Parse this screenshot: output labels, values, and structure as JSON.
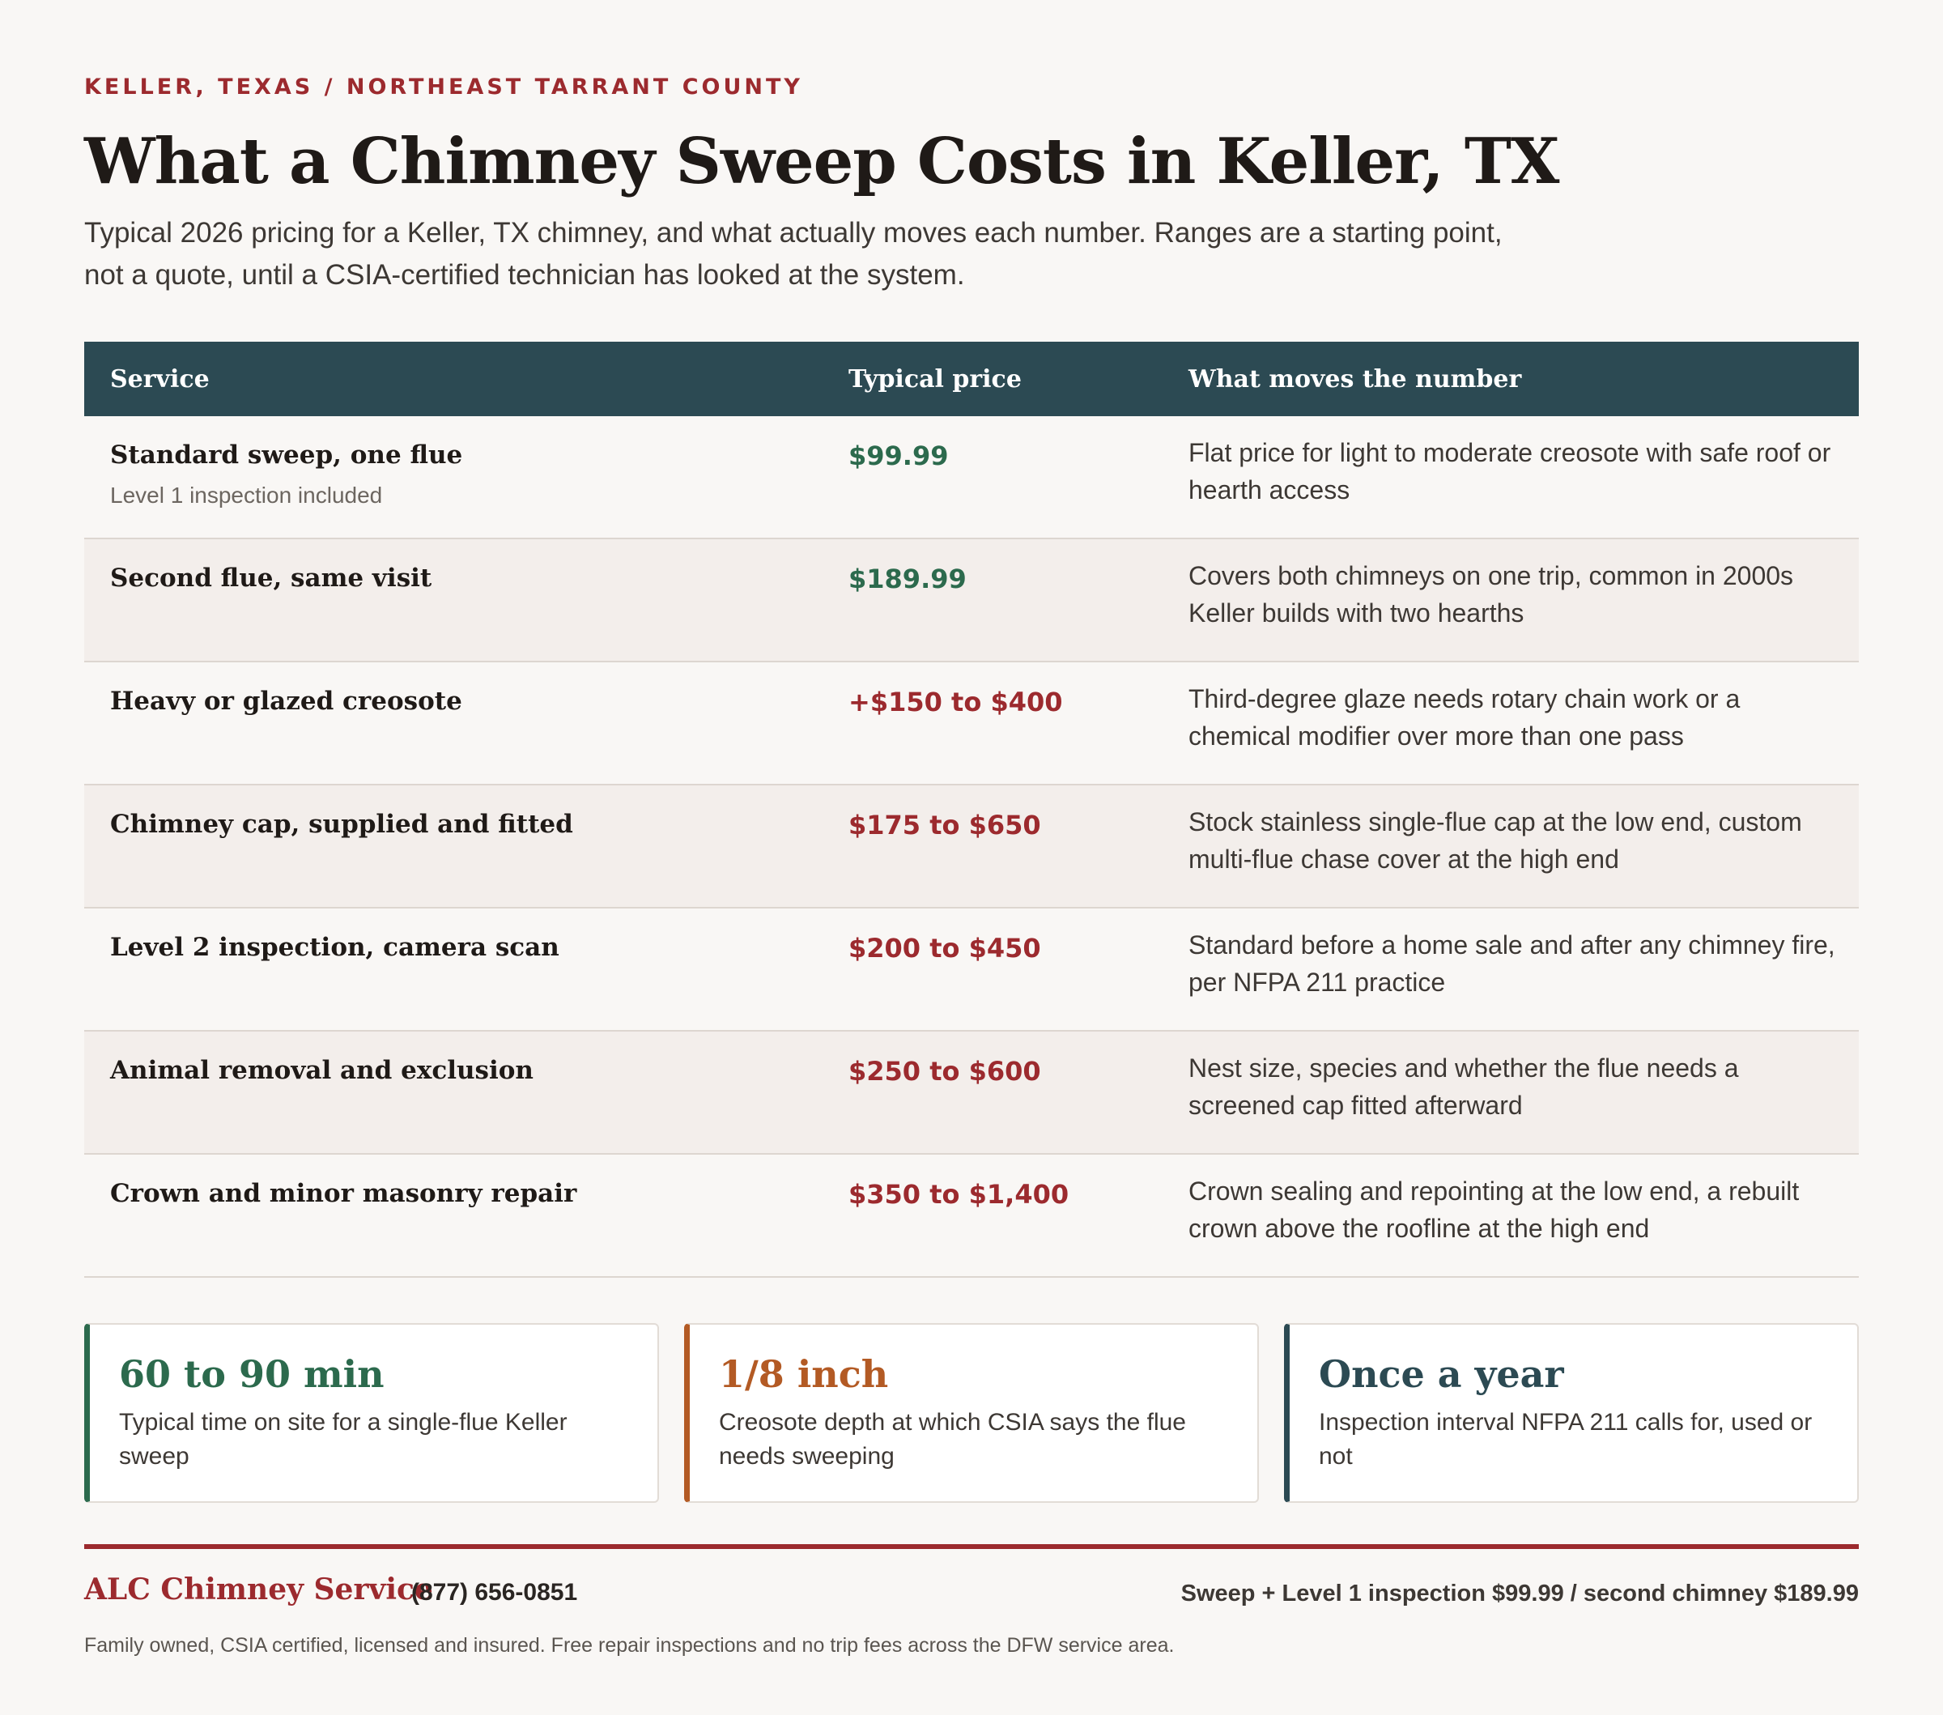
{
  "header": {
    "kicker": "KELLER, TEXAS / NORTHEAST TARRANT COUNTY",
    "title": "What a Chimney Sweep Costs in Keller, TX",
    "intro": "Typical 2026 pricing for a Keller, TX chimney, and what actually moves each number. Ranges are a starting point, not a quote, until a CSIA-certified technician has looked at the system."
  },
  "table": {
    "headers": [
      "Service",
      "Typical price",
      "What moves the number"
    ],
    "rows": [
      {
        "service": "Standard sweep, one flue",
        "sub": "Level 1 inspection included",
        "price": "$99.99",
        "desc": "Flat price for light to moderate creosote with safe roof or hearth access"
      },
      {
        "service": "Second flue, same visit",
        "sub": "",
        "price": "$189.99",
        "desc": "Covers both chimneys on one trip, common in 2000s Keller builds with two hearths"
      },
      {
        "service": "Heavy or glazed creosote",
        "sub": "",
        "price": "+$150 to $400",
        "desc": "Third-degree glaze needs rotary chain work or a chemical modifier over more than one pass"
      },
      {
        "service": "Chimney cap, supplied and fitted",
        "sub": "",
        "price": "$175 to $650",
        "desc": "Stock stainless single-flue cap at the low end, custom multi-flue chase cover at the high end"
      },
      {
        "service": "Level 2 inspection, camera scan",
        "sub": "",
        "price": "$200 to $450",
        "desc": "Standard before a home sale and after any chimney fire, per NFPA 211 practice"
      },
      {
        "service": "Animal removal and exclusion",
        "sub": "",
        "price": "$250 to $600",
        "desc": "Nest size, species and whether the flue needs a screened cap fitted afterward"
      },
      {
        "service": "Crown and minor masonry repair",
        "sub": "",
        "price": "$350 to $1,400",
        "desc": "Crown sealing and repointing at the low end, a rebuilt crown above the roofline at the high end"
      }
    ]
  },
  "stats": [
    {
      "value": "60 to 90 min",
      "label": "Typical time on site for a single-flue Keller sweep",
      "color": "#2c6a4d"
    },
    {
      "value": "1/8 inch",
      "label": "Creosote depth at which CSIA says the flue needs sweeping",
      "color": "#b35a24"
    },
    {
      "value": "Once a year",
      "label": "Inspection interval NFPA 211 calls for, used or not",
      "color": "#2c4a53"
    }
  ],
  "footer": {
    "brand": "ALC Chimney Service",
    "phone": "(877) 656-0851",
    "offer": "Sweep + Level 1 inspection $99.99  /  second chimney $189.99",
    "fineprint": "Family owned, CSIA certified, licensed and insured. Free repair inspections and no trip fees across the DFW service area."
  },
  "colors": {
    "accent_red": "#9c2a2e",
    "header_teal": "#2c4a53",
    "price_green": "#2c6a4d"
  }
}
